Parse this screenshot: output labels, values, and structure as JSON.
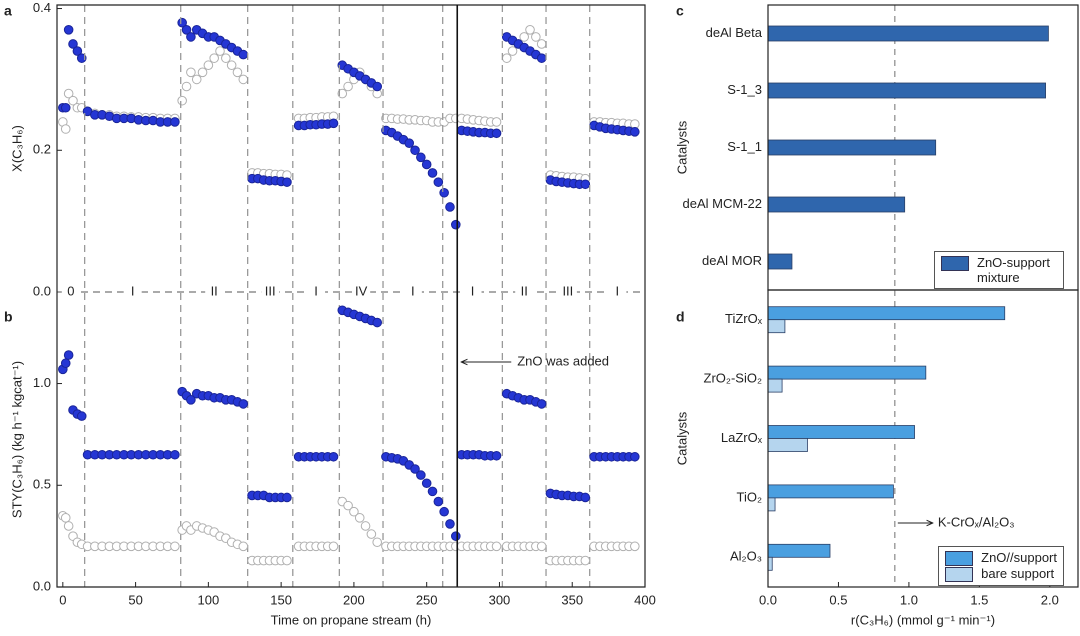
{
  "chart_data": [
    {
      "type": "scatter",
      "panel": "a",
      "ylabel": "X(C₃H₆)",
      "x": [
        0,
        2,
        4,
        7,
        10,
        13,
        17,
        22,
        27,
        32,
        37,
        42,
        47,
        52,
        57,
        62,
        67,
        72,
        77,
        82,
        85,
        88,
        92,
        96,
        100,
        104,
        108,
        112,
        116,
        120,
        124,
        130,
        134,
        138,
        142,
        146,
        150,
        154,
        162,
        166,
        170,
        174,
        178,
        182,
        186,
        192,
        196,
        200,
        204,
        208,
        212,
        216,
        222,
        226,
        230,
        234,
        238,
        242,
        246,
        250,
        254,
        258,
        262,
        266,
        270,
        274,
        278,
        282,
        286,
        290,
        294,
        298,
        305,
        309,
        313,
        317,
        321,
        325,
        329,
        335,
        339,
        343,
        347,
        351,
        355,
        359,
        365,
        369,
        373,
        377,
        381,
        385,
        389,
        393
      ],
      "series": [
        {
          "color": "#b0b0b0",
          "marker_fill": "#ffffff",
          "values": [
            0.24,
            0.23,
            0.28,
            0.27,
            0.26,
            0.26,
            0.255,
            0.252,
            0.25,
            0.25,
            0.248,
            0.248,
            0.247,
            0.247,
            0.246,
            0.246,
            0.245,
            0.245,
            0.245,
            0.27,
            0.29,
            0.31,
            0.3,
            0.31,
            0.32,
            0.33,
            0.34,
            0.33,
            0.32,
            0.31,
            0.3,
            0.168,
            0.168,
            0.167,
            0.167,
            0.166,
            0.166,
            0.165,
            0.245,
            0.245,
            0.246,
            0.246,
            0.247,
            0.247,
            0.248,
            0.28,
            0.29,
            0.3,
            0.31,
            0.3,
            0.29,
            0.28,
            0.245,
            0.245,
            0.244,
            0.244,
            0.243,
            0.243,
            0.242,
            0.242,
            0.24,
            0.24,
            0.24,
            0.245,
            0.245,
            0.245,
            0.244,
            0.243,
            0.242,
            0.241,
            0.24,
            0.24,
            0.33,
            0.34,
            0.35,
            0.36,
            0.37,
            0.36,
            0.35,
            0.165,
            0.164,
            0.163,
            0.162,
            0.162,
            0.161,
            0.16,
            0.24,
            0.24,
            0.239,
            0.239,
            0.238,
            0.238,
            0.237,
            0.237
          ]
        },
        {
          "color": "#1a2598",
          "marker_fill": "#2536d4",
          "values": [
            0.26,
            0.26,
            0.37,
            0.35,
            0.34,
            0.33,
            0.255,
            0.25,
            0.25,
            0.248,
            0.245,
            0.245,
            0.245,
            0.243,
            0.242,
            0.242,
            0.24,
            0.24,
            0.24,
            0.38,
            0.37,
            0.36,
            0.37,
            0.365,
            0.36,
            0.36,
            0.355,
            0.35,
            0.345,
            0.34,
            0.335,
            0.16,
            0.16,
            0.158,
            0.157,
            0.157,
            0.156,
            0.155,
            0.235,
            0.235,
            0.236,
            0.236,
            0.237,
            0.237,
            0.238,
            0.32,
            0.315,
            0.31,
            0.305,
            0.3,
            0.295,
            0.29,
            0.228,
            0.225,
            0.22,
            0.215,
            0.21,
            0.2,
            0.19,
            0.18,
            0.168,
            0.155,
            0.14,
            0.12,
            0.095,
            0.228,
            0.227,
            0.226,
            0.225,
            0.225,
            0.224,
            0.224,
            0.36,
            0.355,
            0.35,
            0.345,
            0.34,
            0.335,
            0.33,
            0.158,
            0.156,
            0.155,
            0.154,
            0.153,
            0.152,
            0.152,
            0.235,
            0.233,
            0.231,
            0.23,
            0.229,
            0.228,
            0.227,
            0.226
          ]
        }
      ],
      "xlim": [
        -4,
        400
      ],
      "ylim": [
        0,
        0.405
      ],
      "yticks": [
        {
          "value": 0,
          "label": "0.0"
        },
        0.2,
        0.4
      ],
      "period_boundaries": [
        15,
        81,
        127,
        158,
        190,
        220,
        261,
        302,
        332,
        362
      ],
      "period_labels": [
        "0",
        "I",
        "II",
        "III",
        "I",
        "IV",
        "I",
        "I",
        "II",
        "III",
        "I"
      ]
    },
    {
      "type": "scatter",
      "panel": "b",
      "ylabel": "STY(C₃H₆) (kg h⁻¹ kgcat⁻¹)",
      "xlabel": "Time on propane stream (h)",
      "x": [
        0,
        2,
        4,
        7,
        10,
        13,
        17,
        22,
        27,
        32,
        37,
        42,
        47,
        52,
        57,
        62,
        67,
        72,
        77,
        82,
        85,
        88,
        92,
        96,
        100,
        104,
        108,
        112,
        116,
        120,
        124,
        130,
        134,
        138,
        142,
        146,
        150,
        154,
        162,
        166,
        170,
        174,
        178,
        182,
        186,
        192,
        196,
        200,
        204,
        208,
        212,
        216,
        222,
        226,
        230,
        234,
        238,
        242,
        246,
        250,
        254,
        258,
        262,
        266,
        270,
        274,
        278,
        282,
        286,
        290,
        294,
        298,
        305,
        309,
        313,
        317,
        321,
        325,
        329,
        335,
        339,
        343,
        347,
        351,
        355,
        359,
        365,
        369,
        373,
        377,
        381,
        385,
        389,
        393
      ],
      "series": [
        {
          "color": "#b0b0b0",
          "marker_fill": "#ffffff",
          "values": [
            0.35,
            0.34,
            0.3,
            0.25,
            0.22,
            0.21,
            0.2,
            0.2,
            0.2,
            0.2,
            0.2,
            0.2,
            0.2,
            0.2,
            0.2,
            0.2,
            0.2,
            0.2,
            0.2,
            0.28,
            0.3,
            0.28,
            0.3,
            0.29,
            0.28,
            0.27,
            0.25,
            0.24,
            0.22,
            0.21,
            0.2,
            0.13,
            0.13,
            0.13,
            0.13,
            0.13,
            0.13,
            0.13,
            0.2,
            0.2,
            0.2,
            0.2,
            0.2,
            0.2,
            0.2,
            0.42,
            0.4,
            0.37,
            0.34,
            0.3,
            0.26,
            0.22,
            0.2,
            0.2,
            0.2,
            0.2,
            0.2,
            0.2,
            0.2,
            0.2,
            0.2,
            0.2,
            0.2,
            0.2,
            0.2,
            0.2,
            0.2,
            0.2,
            0.2,
            0.2,
            0.2,
            0.2,
            0.2,
            0.2,
            0.2,
            0.2,
            0.2,
            0.2,
            0.2,
            0.13,
            0.13,
            0.13,
            0.13,
            0.13,
            0.13,
            0.13,
            0.2,
            0.2,
            0.2,
            0.2,
            0.2,
            0.2,
            0.2,
            0.2
          ]
        },
        {
          "color": "#1a2598",
          "marker_fill": "#2536d4",
          "values": [
            1.07,
            1.1,
            1.14,
            0.87,
            0.85,
            0.84,
            0.65,
            0.65,
            0.65,
            0.65,
            0.65,
            0.65,
            0.65,
            0.65,
            0.65,
            0.65,
            0.65,
            0.65,
            0.65,
            0.96,
            0.94,
            0.92,
            0.95,
            0.94,
            0.94,
            0.93,
            0.93,
            0.92,
            0.92,
            0.91,
            0.9,
            0.45,
            0.45,
            0.45,
            0.44,
            0.44,
            0.44,
            0.44,
            0.64,
            0.64,
            0.64,
            0.64,
            0.64,
            0.64,
            0.64,
            1.36,
            1.35,
            1.34,
            1.33,
            1.32,
            1.31,
            1.3,
            0.64,
            0.635,
            0.63,
            0.62,
            0.6,
            0.58,
            0.55,
            0.51,
            0.47,
            0.42,
            0.37,
            0.31,
            0.25,
            0.65,
            0.65,
            0.65,
            0.65,
            0.645,
            0.645,
            0.645,
            0.95,
            0.94,
            0.93,
            0.92,
            0.92,
            0.91,
            0.9,
            0.46,
            0.455,
            0.45,
            0.45,
            0.445,
            0.445,
            0.44,
            0.64,
            0.64,
            0.64,
            0.64,
            0.64,
            0.64,
            0.64,
            0.64
          ]
        }
      ],
      "xlim": [
        -4,
        400
      ],
      "ylim": [
        0,
        1.45
      ],
      "xticks": [
        0,
        50,
        100,
        150,
        200,
        250,
        300,
        350,
        400
      ],
      "yticks": [
        {
          "value": 0,
          "label": "0.0"
        },
        0.5,
        {
          "value": 1,
          "label": "1.0"
        }
      ],
      "annotation": {
        "text": "ZnO was added",
        "x": 271
      }
    },
    {
      "type": "barh",
      "panel": "c",
      "ylabel": "Catalysts",
      "categories": [
        "deAl Beta",
        "S-1_3",
        "S-1_1",
        "deAl MCM-22",
        "deAl MOR"
      ],
      "series": [
        {
          "name": "ZnO-support mixture",
          "color": "#2f66ad",
          "values": [
            1.99,
            1.97,
            1.19,
            0.97,
            0.17
          ]
        }
      ],
      "xlim": [
        0,
        2.2
      ],
      "reference_line": {
        "value": 0.9
      },
      "legend": "lower right"
    },
    {
      "type": "barh",
      "panel": "d",
      "ylabel": "Catalysts",
      "xlabel": "r(C₃H₆) (mmol g⁻¹ min⁻¹)",
      "categories": [
        "TiZrOₓ",
        "ZrO₂-SiO₂",
        "LaZrOₓ",
        "TiO₂",
        "Al₂O₃"
      ],
      "series": [
        {
          "name": "ZnO//support",
          "color": "#4a9fe0",
          "values": [
            1.68,
            1.12,
            1.04,
            0.89,
            0.44
          ]
        },
        {
          "name": "bare support",
          "color": "#b5d5ee",
          "values": [
            0.12,
            0.1,
            0.28,
            0.05,
            0.03
          ]
        }
      ],
      "xlim": [
        0,
        2.2
      ],
      "xticks": [
        {
          "value": 0,
          "label": "0.0"
        },
        0.5,
        {
          "value": 1,
          "label": "1.0"
        },
        1.5,
        {
          "value": 2,
          "label": "2.0"
        }
      ],
      "reference_line": {
        "value": 0.9,
        "label": "K-CrOₓ/Al₂O₃"
      },
      "legend": "lower right"
    }
  ]
}
